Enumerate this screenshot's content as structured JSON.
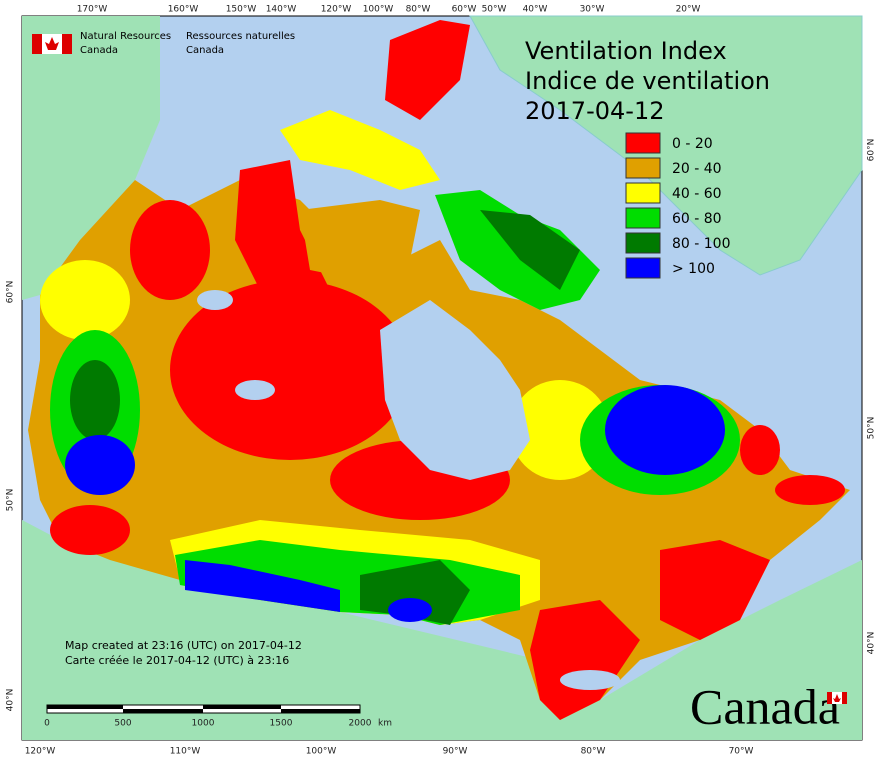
{
  "header": {
    "org_en": [
      "Natural Resources",
      "Canada"
    ],
    "org_fr": [
      "Ressources naturelles",
      "Canada"
    ]
  },
  "title": [
    "Ventilation Index",
    "Indice de ventilation",
    "2017-04-12"
  ],
  "legend": [
    {
      "label": "0 - 20",
      "color": "#ff0000"
    },
    {
      "label": "20 - 40",
      "color": "#e0a000"
    },
    {
      "label": "40 - 60",
      "color": "#ffff00"
    },
    {
      "label": "60 - 80",
      "color": "#00dd00"
    },
    {
      "label": "80 - 100",
      "color": "#007a00"
    },
    {
      "label": "> 100",
      "color": "#0000ff"
    }
  ],
  "top_axis": [
    "170°W",
    "160°W",
    "150°W",
    "140°W",
    "120°W",
    "100°W",
    "80°W",
    "60°W",
    "50°W",
    "40°W",
    "30°W",
    "20°W"
  ],
  "bottom_axis": [
    "120°W",
    "110°W",
    "100°W",
    "90°W",
    "80°W",
    "70°W"
  ],
  "left_axis": [
    "60°N",
    "50°N",
    "40°N"
  ],
  "right_axis": [
    "60°N",
    "50°N",
    "40°N"
  ],
  "notes": [
    "Map created at 23:16 (UTC) on 2017-04-12",
    "Carte créée le 2017-04-12 (UTC) à 23:16"
  ],
  "scale": {
    "ticks": [
      "0",
      "500",
      "1000",
      "1500",
      "2000"
    ],
    "unit": "km"
  },
  "wordmark": "Canada"
}
